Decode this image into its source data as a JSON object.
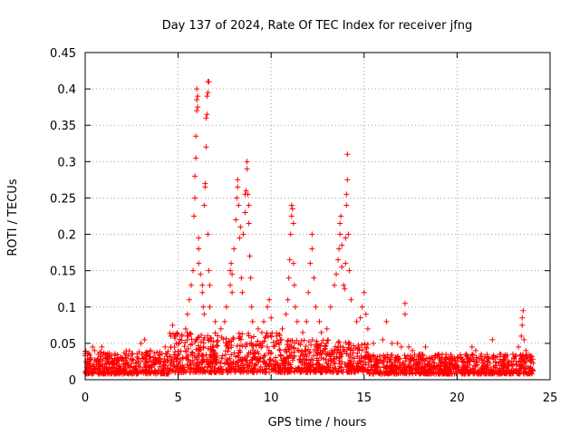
{
  "chart_data": {
    "type": "scatter",
    "title": "Day 137 of 2024, Rate Of TEC Index for receiver jfng",
    "xlabel": "GPS time / hours",
    "ylabel": "ROTI / TECUs",
    "xlim": [
      0,
      25
    ],
    "ylim": [
      0,
      0.45
    ],
    "xticks": [
      0,
      5,
      10,
      15,
      20,
      25
    ],
    "xtick_labels": [
      "0",
      "5",
      "10",
      "15",
      "20",
      "25"
    ],
    "yticks": [
      0,
      0.05,
      0.1,
      0.15,
      0.2,
      0.25,
      0.3,
      0.35,
      0.4,
      0.45
    ],
    "ytick_labels": [
      "0",
      "0.05",
      "0.1",
      "0.15",
      "0.2",
      "0.25",
      "0.3",
      "0.35",
      "0.4",
      "0.45"
    ],
    "grid": true,
    "marker": "+",
    "marker_color": "#ff0000",
    "series": [
      {
        "name": "ROTI",
        "points": [
          [
            0.1,
            0.02
          ],
          [
            0.3,
            0.03
          ],
          [
            0.4,
            0.045
          ],
          [
            0.5,
            0.04
          ],
          [
            0.7,
            0.035
          ],
          [
            0.9,
            0.045
          ],
          [
            1.1,
            0.03
          ],
          [
            1.5,
            0.025
          ],
          [
            2.0,
            0.03
          ],
          [
            2.5,
            0.035
          ],
          [
            3.0,
            0.05
          ],
          [
            3.2,
            0.055
          ],
          [
            3.5,
            0.04
          ],
          [
            4.0,
            0.035
          ],
          [
            4.3,
            0.045
          ],
          [
            4.6,
            0.06
          ],
          [
            4.7,
            0.075
          ],
          [
            4.9,
            0.05
          ],
          [
            5.2,
            0.06
          ],
          [
            5.4,
            0.07
          ],
          [
            5.5,
            0.09
          ],
          [
            5.6,
            0.11
          ],
          [
            5.7,
            0.13
          ],
          [
            5.8,
            0.15
          ],
          [
            5.85,
            0.225
          ],
          [
            5.9,
            0.25
          ],
          [
            5.9,
            0.28
          ],
          [
            5.95,
            0.305
          ],
          [
            5.95,
            0.335
          ],
          [
            6.0,
            0.37
          ],
          [
            6.0,
            0.385
          ],
          [
            6.0,
            0.4
          ],
          [
            6.05,
            0.39
          ],
          [
            6.05,
            0.375
          ],
          [
            6.1,
            0.195
          ],
          [
            6.1,
            0.18
          ],
          [
            6.1,
            0.16
          ],
          [
            6.2,
            0.145
          ],
          [
            6.3,
            0.13
          ],
          [
            6.3,
            0.12
          ],
          [
            6.35,
            0.1
          ],
          [
            6.4,
            0.09
          ],
          [
            6.4,
            0.24
          ],
          [
            6.45,
            0.265
          ],
          [
            6.45,
            0.27
          ],
          [
            6.5,
            0.32
          ],
          [
            6.5,
            0.36
          ],
          [
            6.55,
            0.365
          ],
          [
            6.55,
            0.39
          ],
          [
            6.6,
            0.395
          ],
          [
            6.6,
            0.41
          ],
          [
            6.65,
            0.41
          ],
          [
            6.6,
            0.2
          ],
          [
            6.65,
            0.15
          ],
          [
            6.7,
            0.13
          ],
          [
            6.7,
            0.1
          ],
          [
            7.0,
            0.08
          ],
          [
            7.3,
            0.07
          ],
          [
            7.5,
            0.08
          ],
          [
            7.6,
            0.1
          ],
          [
            7.8,
            0.13
          ],
          [
            7.8,
            0.15
          ],
          [
            7.85,
            0.16
          ],
          [
            7.9,
            0.145
          ],
          [
            7.9,
            0.12
          ],
          [
            8.0,
            0.18
          ],
          [
            8.1,
            0.22
          ],
          [
            8.15,
            0.25
          ],
          [
            8.2,
            0.265
          ],
          [
            8.2,
            0.275
          ],
          [
            8.25,
            0.24
          ],
          [
            8.3,
            0.195
          ],
          [
            8.35,
            0.21
          ],
          [
            8.4,
            0.14
          ],
          [
            8.45,
            0.12
          ],
          [
            8.5,
            0.2
          ],
          [
            8.6,
            0.23
          ],
          [
            8.6,
            0.255
          ],
          [
            8.65,
            0.26
          ],
          [
            8.7,
            0.29
          ],
          [
            8.7,
            0.3
          ],
          [
            8.75,
            0.255
          ],
          [
            8.8,
            0.24
          ],
          [
            8.8,
            0.215
          ],
          [
            8.85,
            0.17
          ],
          [
            8.9,
            0.14
          ],
          [
            8.95,
            0.1
          ],
          [
            9.0,
            0.08
          ],
          [
            9.3,
            0.07
          ],
          [
            9.5,
            0.065
          ],
          [
            9.6,
            0.08
          ],
          [
            9.8,
            0.1
          ],
          [
            9.9,
            0.11
          ],
          [
            10.0,
            0.085
          ],
          [
            10.3,
            0.06
          ],
          [
            10.6,
            0.07
          ],
          [
            10.8,
            0.09
          ],
          [
            10.9,
            0.11
          ],
          [
            10.95,
            0.14
          ],
          [
            11.0,
            0.165
          ],
          [
            11.05,
            0.2
          ],
          [
            11.1,
            0.225
          ],
          [
            11.1,
            0.24
          ],
          [
            11.15,
            0.235
          ],
          [
            11.2,
            0.215
          ],
          [
            11.2,
            0.16
          ],
          [
            11.25,
            0.13
          ],
          [
            11.3,
            0.1
          ],
          [
            11.4,
            0.08
          ],
          [
            11.7,
            0.065
          ],
          [
            11.9,
            0.08
          ],
          [
            12.0,
            0.12
          ],
          [
            12.1,
            0.16
          ],
          [
            12.2,
            0.18
          ],
          [
            12.2,
            0.2
          ],
          [
            12.3,
            0.14
          ],
          [
            12.4,
            0.1
          ],
          [
            12.6,
            0.08
          ],
          [
            12.7,
            0.065
          ],
          [
            13.0,
            0.07
          ],
          [
            13.2,
            0.1
          ],
          [
            13.4,
            0.13
          ],
          [
            13.5,
            0.145
          ],
          [
            13.6,
            0.165
          ],
          [
            13.65,
            0.18
          ],
          [
            13.7,
            0.2
          ],
          [
            13.7,
            0.215
          ],
          [
            13.75,
            0.225
          ],
          [
            13.8,
            0.185
          ],
          [
            13.8,
            0.155
          ],
          [
            13.9,
            0.13
          ],
          [
            13.95,
            0.125
          ],
          [
            14.0,
            0.16
          ],
          [
            14.0,
            0.195
          ],
          [
            14.05,
            0.24
          ],
          [
            14.05,
            0.255
          ],
          [
            14.1,
            0.275
          ],
          [
            14.1,
            0.31
          ],
          [
            14.15,
            0.2
          ],
          [
            14.2,
            0.15
          ],
          [
            14.3,
            0.11
          ],
          [
            14.6,
            0.08
          ],
          [
            14.8,
            0.085
          ],
          [
            14.9,
            0.1
          ],
          [
            15.0,
            0.12
          ],
          [
            15.1,
            0.09
          ],
          [
            15.2,
            0.07
          ],
          [
            15.5,
            0.05
          ],
          [
            16.0,
            0.055
          ],
          [
            16.2,
            0.08
          ],
          [
            16.5,
            0.05
          ],
          [
            16.8,
            0.05
          ],
          [
            17.0,
            0.045
          ],
          [
            17.2,
            0.09
          ],
          [
            17.2,
            0.105
          ],
          [
            17.4,
            0.045
          ],
          [
            17.6,
            0.04
          ],
          [
            18.0,
            0.035
          ],
          [
            18.3,
            0.045
          ],
          [
            18.5,
            0.03
          ],
          [
            19.0,
            0.035
          ],
          [
            19.5,
            0.03
          ],
          [
            20.0,
            0.03
          ],
          [
            20.5,
            0.035
          ],
          [
            20.8,
            0.045
          ],
          [
            21.0,
            0.04
          ],
          [
            21.3,
            0.035
          ],
          [
            21.6,
            0.03
          ],
          [
            21.9,
            0.055
          ],
          [
            22.3,
            0.035
          ],
          [
            22.6,
            0.03
          ],
          [
            23.0,
            0.035
          ],
          [
            23.3,
            0.045
          ],
          [
            23.45,
            0.06
          ],
          [
            23.5,
            0.075
          ],
          [
            23.5,
            0.085
          ],
          [
            23.55,
            0.095
          ],
          [
            23.6,
            0.055
          ],
          [
            23.7,
            0.04
          ],
          [
            23.9,
            0.03
          ],
          [
            24.0,
            0.025
          ]
        ],
        "baseline_band": [
          {
            "x": [
              0,
              4.5
            ],
            "y": [
              0.008,
              0.04
            ]
          },
          {
            "x": [
              4.5,
              10.5
            ],
            "y": [
              0.01,
              0.065
            ]
          },
          {
            "x": [
              10.5,
              15.2
            ],
            "y": [
              0.01,
              0.055
            ]
          },
          {
            "x": [
              15.2,
              24.1
            ],
            "y": [
              0.008,
              0.035
            ]
          }
        ]
      }
    ]
  }
}
